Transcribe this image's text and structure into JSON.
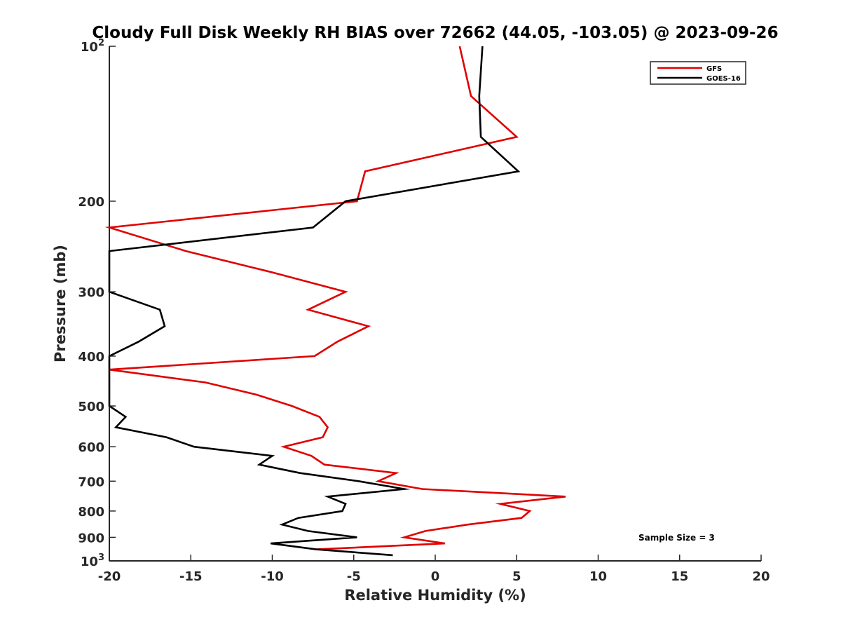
{
  "chart_data": {
    "type": "line",
    "title": "Cloudy Full Disk Weekly RH BIAS over 72662 (44.05, -103.05) @ 2023-09-26",
    "xlabel": "Relative Humidity (%)",
    "ylabel": "Pressure (mb)",
    "xlim": [
      -20,
      20
    ],
    "ylim": [
      100,
      1000
    ],
    "y_scale": "log",
    "y_reversed": true,
    "grid": false,
    "legend_position": "top-right",
    "x_ticks": [
      "-20",
      "-15",
      "-10",
      "-5",
      "0",
      "5",
      "10",
      "15",
      "20"
    ],
    "y_ticks": [
      {
        "value": 100,
        "base": "10",
        "exp": "2"
      },
      {
        "value": 200,
        "label": "200"
      },
      {
        "value": 300,
        "label": "300"
      },
      {
        "value": 400,
        "label": "400"
      },
      {
        "value": 500,
        "label": "500"
      },
      {
        "value": 600,
        "label": "600"
      },
      {
        "value": 700,
        "label": "700"
      },
      {
        "value": 800,
        "label": "800"
      },
      {
        "value": 900,
        "label": "900"
      },
      {
        "value": 1000,
        "base": "10",
        "exp": "3"
      }
    ],
    "annotation": "Sample Size = 3",
    "series": [
      {
        "name": "GFS",
        "color": "#e00000",
        "points": [
          [
            1.5,
            100
          ],
          [
            2.2,
            125
          ],
          [
            5.0,
            150
          ],
          [
            -4.3,
            175
          ],
          [
            -4.8,
            200
          ],
          [
            -20,
            225
          ],
          [
            -15.3,
            250
          ],
          [
            -10,
            275
          ],
          [
            -5.5,
            300
          ],
          [
            -7.8,
            325
          ],
          [
            -4.1,
            350
          ],
          [
            -6.0,
            375
          ],
          [
            -7.4,
            400
          ],
          [
            -20,
            425
          ],
          [
            -14.1,
            450
          ],
          [
            -11.0,
            475
          ],
          [
            -8.8,
            500
          ],
          [
            -7.1,
            525
          ],
          [
            -6.6,
            550
          ],
          [
            -6.9,
            575
          ],
          [
            -9.3,
            600
          ],
          [
            -7.6,
            625
          ],
          [
            -6.8,
            650
          ],
          [
            -2.4,
            675
          ],
          [
            -3.5,
            700
          ],
          [
            -0.8,
            725
          ],
          [
            8.0,
            750
          ],
          [
            4.0,
            775
          ],
          [
            5.8,
            800
          ],
          [
            5.3,
            825
          ],
          [
            2.0,
            850
          ],
          [
            -0.6,
            875
          ],
          [
            -1.9,
            900
          ],
          [
            0.6,
            925
          ],
          [
            -7.3,
            950
          ]
        ]
      },
      {
        "name": "GOES-16",
        "color": "#000000",
        "points": [
          [
            2.9,
            100
          ],
          [
            2.7,
            125
          ],
          [
            2.8,
            150
          ],
          [
            5.1,
            175
          ],
          [
            -5.5,
            200
          ],
          [
            -7.5,
            225
          ],
          [
            -20,
            250
          ],
          [
            -20,
            300
          ],
          [
            -16.9,
            325
          ],
          [
            -16.6,
            350
          ],
          [
            -18.2,
            375
          ],
          [
            -20,
            400
          ],
          [
            -20,
            500
          ],
          [
            -19.0,
            525
          ],
          [
            -19.6,
            550
          ],
          [
            -16.5,
            575
          ],
          [
            -14.8,
            600
          ],
          [
            -10.0,
            625
          ],
          [
            -10.8,
            650
          ],
          [
            -8.3,
            675
          ],
          [
            -4.7,
            700
          ],
          [
            -1.9,
            725
          ],
          [
            -6.6,
            750
          ],
          [
            -5.5,
            775
          ],
          [
            -5.7,
            800
          ],
          [
            -8.4,
            825
          ],
          [
            -9.4,
            850
          ],
          [
            -7.8,
            875
          ],
          [
            -4.8,
            900
          ],
          [
            -10.1,
            925
          ],
          [
            -7.3,
            950
          ],
          [
            -2.6,
            975
          ]
        ]
      }
    ]
  }
}
